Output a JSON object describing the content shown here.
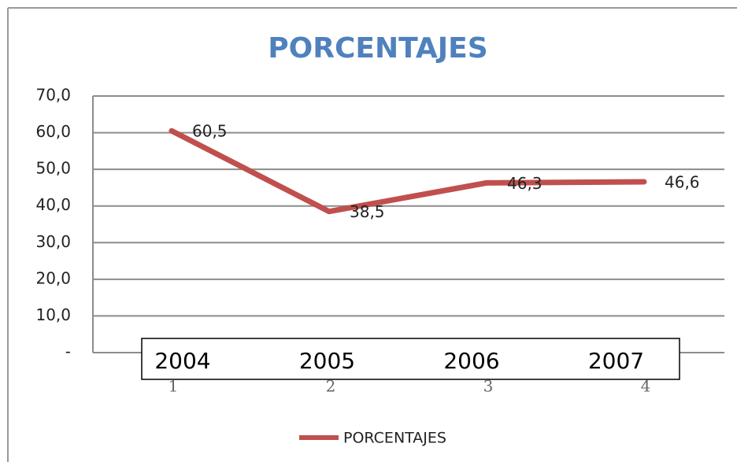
{
  "chart_data": {
    "type": "line",
    "title": "PORCENTAJES",
    "categories": [
      "1",
      "2",
      "3",
      "4"
    ],
    "annotations": [
      "2004",
      "2005",
      "2006",
      "2007"
    ],
    "series": [
      {
        "name": "PORCENTAJES",
        "color": "#c0504d",
        "values": [
          60.5,
          38.5,
          46.3,
          46.6
        ],
        "value_labels": [
          "60,5",
          "38,5",
          "46,3",
          "46,6"
        ]
      }
    ],
    "ylim": [
      0,
      70
    ],
    "yticks": [
      {
        "value": 0,
        "label": "-"
      },
      {
        "value": 10,
        "label": "10,0"
      },
      {
        "value": 20,
        "label": "20,0"
      },
      {
        "value": 30,
        "label": "30,0"
      },
      {
        "value": 40,
        "label": "40,0"
      },
      {
        "value": 50,
        "label": "50,0"
      },
      {
        "value": 60,
        "label": "60,0"
      },
      {
        "value": 70,
        "label": "70,0"
      }
    ],
    "grid": true,
    "legend": "bottom"
  }
}
